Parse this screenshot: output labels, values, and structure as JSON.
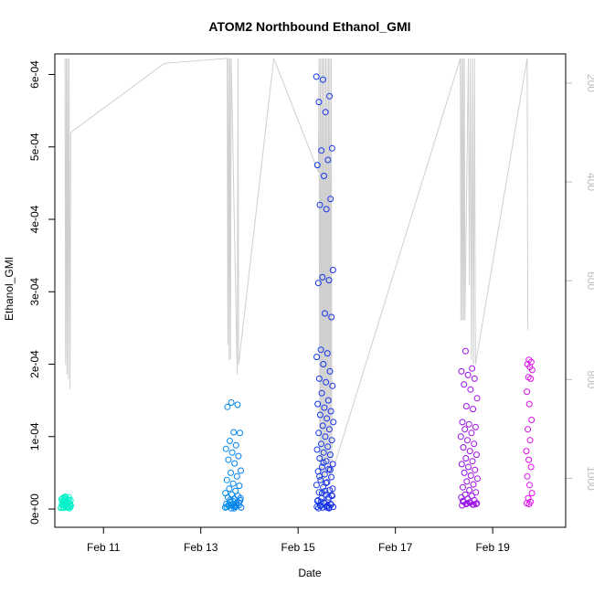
{
  "chart_data": {
    "type": "scatter",
    "title": "ATOM2 Northbound Ethanol_GMI",
    "xlabel": "Date",
    "ylabel": "Ethanol_GMI",
    "xlim": [
      "2016-02-10 00:00",
      "2016-02-20 12:00"
    ],
    "ylim": [
      0,
      0.000612
    ],
    "y2lim": [
      1062,
      165
    ],
    "x_ticks": [
      {
        "label": "Feb 11",
        "date": "2016-02-11"
      },
      {
        "label": "Feb 13",
        "date": "2016-02-13"
      },
      {
        "label": "Feb 15",
        "date": "2016-02-15"
      },
      {
        "label": "Feb 17",
        "date": "2016-02-17"
      },
      {
        "label": "Feb 19",
        "date": "2016-02-19"
      }
    ],
    "y_ticks": [
      {
        "label": "0e+00",
        "value": 0
      },
      {
        "label": "1e-04",
        "value": 0.0001
      },
      {
        "label": "2e-04",
        "value": 0.0002
      },
      {
        "label": "3e-04",
        "value": 0.0003
      },
      {
        "label": "4e-04",
        "value": 0.0004
      },
      {
        "label": "5e-04",
        "value": 0.0005
      },
      {
        "label": "6e-04",
        "value": 0.0006
      }
    ],
    "y2_ticks": [
      {
        "label": "200",
        "value": 200
      },
      {
        "label": "400",
        "value": 400
      },
      {
        "label": "600",
        "value": 600
      },
      {
        "label": "800",
        "value": 800
      },
      {
        "label": "1000",
        "value": 1000
      }
    ],
    "point_color_scale": [
      "#00f5c8",
      "#00c0f0",
      "#0040e8",
      "#6010e8",
      "#e010e8"
    ],
    "line_color": "#cfcfcf",
    "secondary_series": {
      "name": "",
      "unit": "",
      "points": [
        [
          "2016-02-10 05:00",
          150
        ],
        [
          "2016-02-10 05:20",
          770
        ],
        [
          "2016-02-10 05:40",
          150
        ],
        [
          "2016-02-10 06:00",
          790
        ],
        [
          "2016-02-10 06:20",
          150
        ],
        [
          "2016-02-10 06:40",
          800
        ],
        [
          "2016-02-10 07:00",
          150
        ],
        [
          "2016-02-10 07:30",
          820
        ],
        [
          "2016-02-10 07:50",
          300
        ],
        [
          "2016-02-12 06:00",
          160
        ],
        [
          "2016-02-13 13:00",
          150
        ],
        [
          "2016-02-13 13:20",
          730
        ],
        [
          "2016-02-13 13:40",
          150
        ],
        [
          "2016-02-13 14:00",
          760
        ],
        [
          "2016-02-13 14:20",
          150
        ],
        [
          "2016-02-13 14:40",
          760
        ],
        [
          "2016-02-13 15:00",
          150
        ],
        [
          "2016-02-13 18:00",
          790
        ],
        [
          "2016-02-13 18:20",
          150
        ],
        [
          "2016-02-13 18:40",
          770
        ],
        [
          "2016-02-14 12:00",
          150
        ],
        [
          "2016-02-15 10:00",
          380
        ],
        [
          "2016-02-15 10:20",
          150
        ],
        [
          "2016-02-15 10:40",
          1000
        ],
        [
          "2016-02-15 11:00",
          150
        ],
        [
          "2016-02-15 11:20",
          1010
        ],
        [
          "2016-02-15 11:40",
          150
        ],
        [
          "2016-02-15 12:00",
          1020
        ],
        [
          "2016-02-15 12:20",
          150
        ],
        [
          "2016-02-15 12:40",
          1010
        ],
        [
          "2016-02-15 13:00",
          150
        ],
        [
          "2016-02-15 13:20",
          1000
        ],
        [
          "2016-02-15 13:40",
          150
        ],
        [
          "2016-02-15 14:00",
          960
        ],
        [
          "2016-02-15 14:20",
          150
        ],
        [
          "2016-02-15 14:40",
          990
        ],
        [
          "2016-02-15 15:00",
          150
        ],
        [
          "2016-02-15 15:20",
          1000
        ],
        [
          "2016-02-15 15:40",
          150
        ],
        [
          "2016-02-15 16:00",
          1000
        ],
        [
          "2016-02-15 16:20",
          150
        ],
        [
          "2016-02-15 16:40",
          990
        ],
        [
          "2016-02-18 08:00",
          150
        ],
        [
          "2016-02-18 08:20",
          680
        ],
        [
          "2016-02-18 08:40",
          150
        ],
        [
          "2016-02-18 09:00",
          680
        ],
        [
          "2016-02-18 09:20",
          150
        ],
        [
          "2016-02-18 09:40",
          680
        ],
        [
          "2016-02-18 10:00",
          150
        ],
        [
          "2016-02-18 10:20",
          680
        ],
        [
          "2016-02-18 12:00",
          150
        ],
        [
          "2016-02-18 12:30",
          610
        ],
        [
          "2016-02-18 13:00",
          150
        ],
        [
          "2016-02-18 13:30",
          760
        ],
        [
          "2016-02-18 14:00",
          150
        ],
        [
          "2016-02-18 14:30",
          770
        ],
        [
          "2016-02-18 15:00",
          150
        ],
        [
          "2016-02-18 15:30",
          770
        ],
        [
          "2016-02-19 17:00",
          150
        ],
        [
          "2016-02-19 17:20",
          700
        ]
      ]
    },
    "clusters": [
      {
        "name": "",
        "start": "2016-02-10 03:00",
        "end": "2016-02-10 08:00",
        "values": [
          1.5e-06,
          2e-06,
          3e-06,
          4e-06,
          5e-06,
          6e-06,
          8e-06,
          1e-05,
          1.2e-05,
          1.4e-05,
          1.5e-05,
          1.6e-05,
          1.7e-05,
          2.5e-06,
          3.5e-06,
          5.5e-06,
          7.5e-06,
          9e-06,
          1.1e-05,
          1.3e-05,
          1.45e-05,
          4.5e-06,
          6.5e-06,
          9.5e-06,
          1e-06,
          1.6e-05,
          1.35e-05,
          2.5e-06,
          1.5e-06,
          3e-06
        ]
      },
      {
        "name": "",
        "start": "2016-02-13 12:00",
        "end": "2016-02-13 20:00",
        "values": [
          1e-06,
          2e-06,
          3e-06,
          4e-06,
          5e-06,
          6e-06,
          7e-06,
          8e-06,
          1e-05,
          1.2e-05,
          1.4e-05,
          1.6e-05,
          1.8e-05,
          2e-05,
          2.2e-05,
          2.5e-05,
          2.8e-05,
          3.2e-05,
          3.5e-05,
          4e-05,
          4.5e-05,
          5e-05,
          5.3e-05,
          6.3e-05,
          6.8e-05,
          7.3e-05,
          7.8e-05,
          8.3e-05,
          8.8e-05,
          9.4e-05,
          0.000105,
          0.000106,
          0.000141,
          0.000144,
          0.000147,
          2e-06,
          4e-06,
          6e-06,
          9e-06,
          1.1e-05,
          3e-06,
          5e-06,
          1.3e-05,
          1.5e-05,
          1e-06
        ]
      },
      {
        "name": "",
        "start": "2016-02-15 09:00",
        "end": "2016-02-15 17:30",
        "values": [
          1e-06,
          2e-06,
          3e-06,
          4e-06,
          5e-06,
          7e-06,
          9e-06,
          1.1e-05,
          1.3e-05,
          1.5e-05,
          1.8e-05,
          2e-05,
          2.3e-05,
          2.6e-05,
          3e-05,
          3.3e-05,
          3.7e-05,
          4e-05,
          4.4e-05,
          4.8e-05,
          5.2e-05,
          5.5e-05,
          5.8e-05,
          6.2e-05,
          6.6e-05,
          7e-05,
          7.5e-05,
          7.8e-05,
          8.2e-05,
          8.6e-05,
          9e-05,
          9.5e-05,
          0.0001,
          0.000105,
          0.00011,
          0.000115,
          0.00012,
          0.000125,
          0.00013,
          0.000135,
          0.00014,
          0.000145,
          0.00015,
          0.00016,
          0.00017,
          0.000175,
          0.00018,
          0.00019,
          0.0002,
          0.00021,
          0.000215,
          0.00022,
          0.000265,
          0.00027,
          0.000312,
          0.000316,
          0.00032,
          0.00033,
          0.000414,
          0.00042,
          0.000428,
          0.00046,
          0.000475,
          0.000482,
          0.000495,
          0.000498,
          0.000548,
          0.000562,
          0.00057,
          0.000593,
          0.000597,
          2e-06,
          4e-06,
          6e-06,
          8e-06,
          1.2e-05,
          1.6e-05,
          2.2e-05,
          2.8e-05,
          3.6e-05,
          4.5e-05,
          5.4e-05,
          6.4e-05,
          3e-06,
          5e-06,
          1e-05,
          1.9e-05,
          2.5e-05,
          1e-06,
          2e-06
        ]
      },
      {
        "name": "",
        "start": "2016-02-18 08:00",
        "end": "2016-02-18 16:30",
        "values": [
          5e-06,
          6e-06,
          7e-06,
          8e-06,
          9e-06,
          1e-05,
          1.2e-05,
          1.4e-05,
          1.6e-05,
          1.8e-05,
          2e-05,
          2.3e-05,
          2.6e-05,
          3e-05,
          3.4e-05,
          3.8e-05,
          4.2e-05,
          4.6e-05,
          5e-05,
          5.4e-05,
          5.8e-05,
          6.2e-05,
          6.6e-05,
          7e-05,
          7.5e-05,
          8e-05,
          8.5e-05,
          9e-05,
          9.5e-05,
          0.0001,
          0.000105,
          0.00011,
          0.000113,
          0.000117,
          0.00012,
          0.000138,
          0.000142,
          0.000153,
          0.000165,
          0.000172,
          0.00018,
          0.000185,
          0.00019,
          0.000194,
          0.000218,
          7e-06,
          9e-06,
          1.1e-05,
          6e-06,
          8e-06
        ]
      },
      {
        "name": "",
        "start": "2016-02-19 16:30",
        "end": "2016-02-19 19:30",
        "values": [
          7e-06,
          8e-06,
          1e-05,
          1.5e-05,
          2.2e-05,
          3.3e-05,
          4.5e-05,
          5.8e-05,
          6.8e-05,
          8e-05,
          9.5e-05,
          0.00011,
          0.000123,
          0.000145,
          0.000162,
          0.00018,
          0.000182,
          0.000192,
          0.000196,
          0.0002,
          0.000203,
          0.000206
        ]
      }
    ]
  }
}
